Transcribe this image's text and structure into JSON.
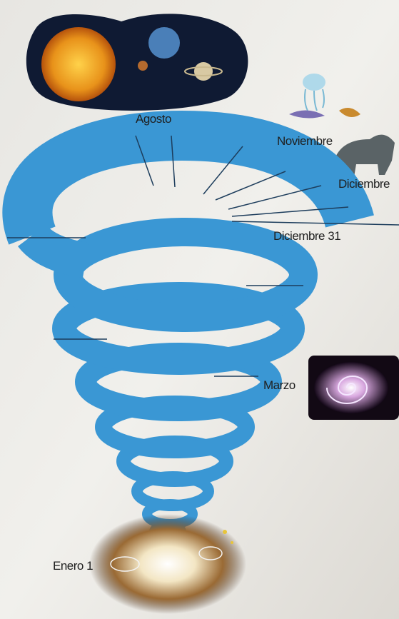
{
  "labels": [
    "Agosto",
    "Noviembre",
    "Diciembre",
    "Diciembre 31",
    "Marzo",
    "Enero 1"
  ]
}
